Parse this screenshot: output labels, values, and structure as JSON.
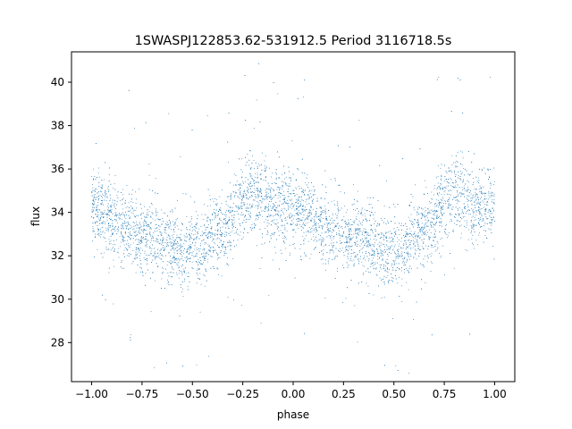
{
  "chart_data": {
    "type": "scatter",
    "title": "1SWASPJ122853.62-531912.5 Period 3116718.5s",
    "xlabel": "phase",
    "ylabel": "flux",
    "xlim": [
      -1.1,
      1.1
    ],
    "ylim": [
      26.2,
      41.4
    ],
    "xticks": [
      -1.0,
      -0.75,
      -0.5,
      -0.25,
      0.0,
      0.25,
      0.5,
      0.75,
      1.0
    ],
    "xtick_labels": [
      "−1.00",
      "−0.75",
      "−0.50",
      "−0.25",
      "0.00",
      "0.25",
      "0.50",
      "0.75",
      "1.00"
    ],
    "yticks": [
      28,
      30,
      32,
      34,
      36,
      38,
      40
    ],
    "ytick_labels": [
      "28",
      "30",
      "32",
      "34",
      "36",
      "38",
      "40"
    ],
    "grid": false,
    "legend": "none",
    "marker_color": "#1f77b4",
    "x_range_covered": [
      -1.0,
      1.0
    ],
    "phase_profile": {
      "phase": [
        0.0,
        0.05,
        0.1,
        0.15,
        0.2,
        0.25,
        0.3,
        0.35,
        0.4,
        0.45,
        0.5,
        0.55,
        0.6,
        0.65,
        0.7,
        0.75,
        0.8,
        0.85,
        0.9,
        0.95,
        1.0
      ],
      "median_flux": [
        34.3,
        34.0,
        33.6,
        33.3,
        33.1,
        33.0,
        32.9,
        32.8,
        32.5,
        32.0,
        32.4,
        32.2,
        33.0,
        33.2,
        33.6,
        34.6,
        35.0,
        34.5,
        34.3,
        34.2,
        34.3
      ],
      "scatter": 1.1
    }
  }
}
